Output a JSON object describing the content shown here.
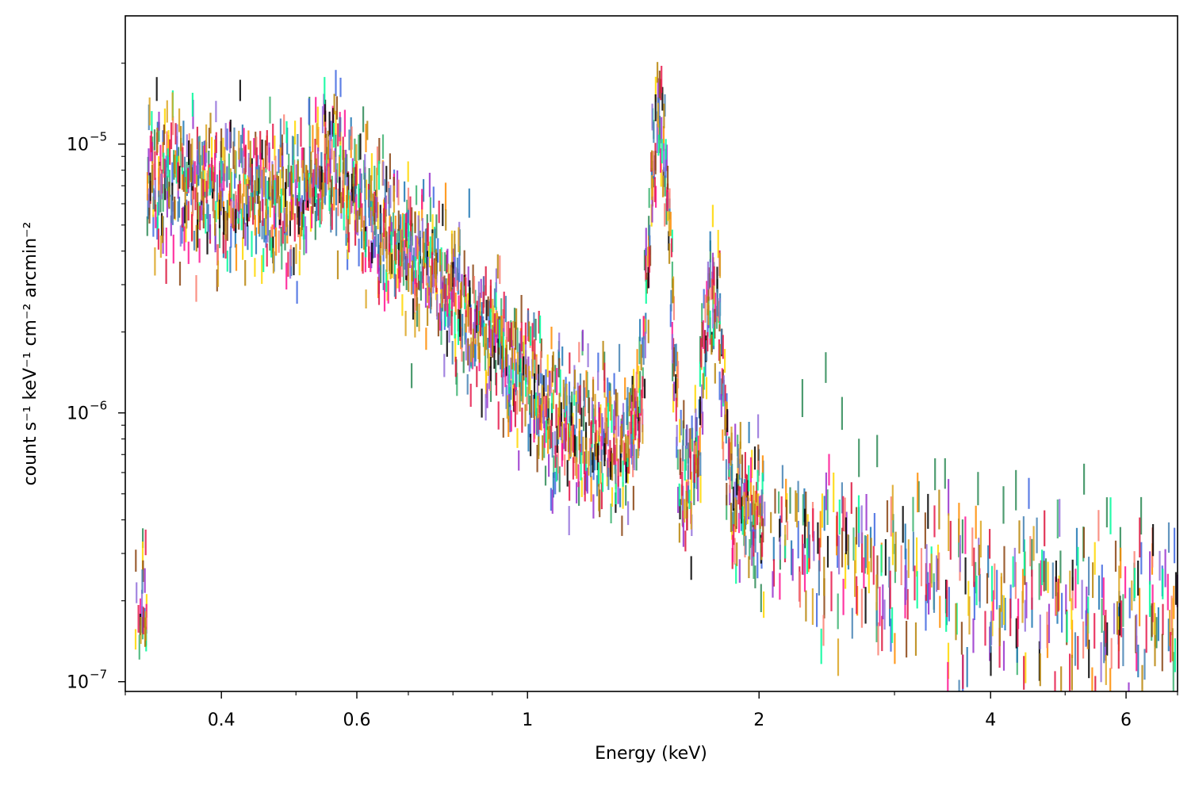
{
  "chart_data": {
    "type": "scatter",
    "title": "",
    "xlabel": "Energy (keV)",
    "ylabel": "count s⁻¹ keV⁻¹ cm⁻² arcmin⁻²",
    "xscale": "log",
    "yscale": "log",
    "xlim": [
      0.3,
      7.0
    ],
    "ylim": [
      9.2e-08,
      3e-05
    ],
    "grid": false,
    "legend": "none",
    "x_ticks": [
      {
        "value": 0.4,
        "label": "0.4"
      },
      {
        "value": 0.6,
        "label": "0.6"
      },
      {
        "value": 1,
        "label": "1"
      },
      {
        "value": 2,
        "label": "2"
      },
      {
        "value": 4,
        "label": "4"
      },
      {
        "value": 6,
        "label": "6"
      }
    ],
    "y_ticks": [
      {
        "value": 1e-07,
        "base": "10",
        "exp": "−7"
      },
      {
        "value": 1e-06,
        "base": "10",
        "exp": "−6"
      },
      {
        "value": 1e-05,
        "base": "10",
        "exp": "−5"
      }
    ],
    "series_colors": [
      "#2e8b57",
      "#3cb371",
      "#4169e1",
      "#1f77b4",
      "#ff8c00",
      "#ffd700",
      "#dc143c",
      "#ff1493",
      "#9932cc",
      "#8b4513",
      "#fa8072",
      "#000000",
      "#00fa9a",
      "#9370db",
      "#4682b4",
      "#daa520",
      "#e6194b",
      "#b8860b"
    ],
    "series_count": 18,
    "spectrum_model": {
      "continuum": [
        [
          0.32,
          8e-06
        ],
        [
          0.4,
          6.8e-06
        ],
        [
          0.5,
          6.3e-06
        ],
        [
          0.56,
          9e-06
        ],
        [
          0.6,
          6.4e-06
        ],
        [
          0.7,
          3.9e-06
        ],
        [
          0.8,
          2.7e-06
        ],
        [
          0.9,
          1.9e-06
        ],
        [
          1.0,
          1.3e-06
        ],
        [
          1.1,
          1e-06
        ],
        [
          1.2,
          8.5e-07
        ],
        [
          1.3,
          7.5e-07
        ],
        [
          1.4,
          8e-07
        ],
        [
          1.55,
          6e-07
        ],
        [
          1.7,
          5.5e-07
        ],
        [
          1.9,
          4.6e-07
        ],
        [
          2.2,
          3.4e-07
        ],
        [
          3.0,
          2.7e-07
        ],
        [
          4.0,
          2.2e-07
        ],
        [
          5.0,
          1.9e-07
        ],
        [
          6.0,
          1.8e-07
        ],
        [
          7.0,
          1.8e-07
        ]
      ],
      "lines": [
        {
          "energy": 1.486,
          "peak": 1.25e-05,
          "sigma_keV": 0.03
        },
        {
          "energy": 1.74,
          "peak": 2.6e-06,
          "sigma_keV": 0.035
        }
      ],
      "scatter_dex": 0.13,
      "highE_noisy_series": 0
    }
  }
}
